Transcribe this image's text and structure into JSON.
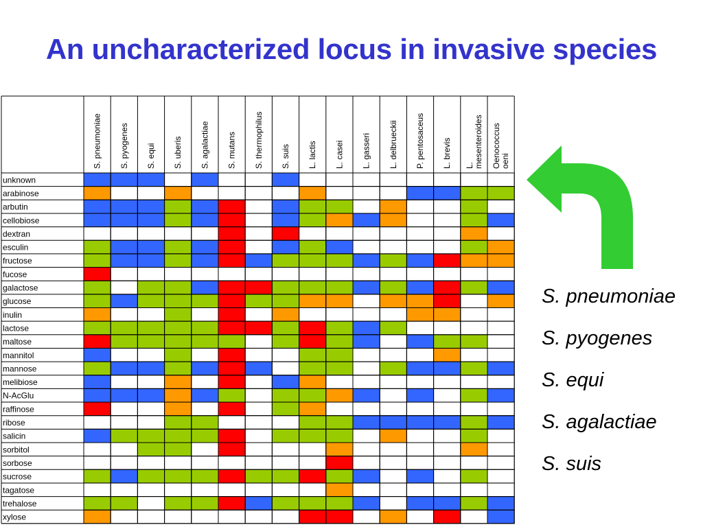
{
  "title": "An uncharacterized locus in invasive species",
  "columns": [
    "S. pneumoniae",
    "S. pyogenes",
    "S. equi",
    "S. uberis",
    "S. agalactiae",
    "S. mutans",
    "S. thermophilus",
    "S. suis",
    "L. lactis",
    "L. casei",
    "L. gasseri",
    "L. delbrueckii",
    "P. pentosaceus",
    "L. brevis",
    "L. mesenteroides",
    "Oenococcus oeni"
  ],
  "column_lines": [
    [
      "S. pneumoniae"
    ],
    [
      "S. pyogenes"
    ],
    [
      "S. equi"
    ],
    [
      "S. uberis"
    ],
    [
      "S. agalactiae"
    ],
    [
      "S. mutans"
    ],
    [
      "S. thermophilus"
    ],
    [
      "S. suis"
    ],
    [
      "L. lactis"
    ],
    [
      "L. casei"
    ],
    [
      "L. gasseri"
    ],
    [
      "L. delbrueckii"
    ],
    [
      "P. pentosaceus"
    ],
    [
      "L. brevis"
    ],
    [
      "L.",
      "mesenteroides"
    ],
    [
      "Oenococcus",
      "oeni"
    ]
  ],
  "legend_colors": {
    "B": "#3366ff",
    "G": "#99cc00",
    "R": "#ff0000",
    "O": "#ff9900",
    "W": "#ffffff"
  },
  "rows": [
    {
      "label": "unknown",
      "cells": "BBBWBWWBWWWWWWWW"
    },
    {
      "label": "arabinose",
      "cells": "OWWOWWWWOWWWBBGG"
    },
    {
      "label": "arbutin",
      "cells": "BBBGBRWBGGWOWWGW"
    },
    {
      "label": "cellobiose",
      "cells": "BBBGBRWBGOBOWWGB"
    },
    {
      "label": "dextran",
      "cells": "WWWWWRWRWWWWWWOW"
    },
    {
      "label": "esculin",
      "cells": "GBBGBRWBGBWWWWGO"
    },
    {
      "label": "fructose",
      "cells": "GBBGBRBGGGBGBROO"
    },
    {
      "label": "fucose",
      "cells": "RWWWWWWWWWWWWWWW"
    },
    {
      "label": "galactose",
      "cells": "GWGGBRRGGGBGBRGB"
    },
    {
      "label": "glucose",
      "cells": "GBGGGRGGOOWOORWO"
    },
    {
      "label": "inulin",
      "cells": "OWWGWRWOWWWWOOWW"
    },
    {
      "label": "lactose",
      "cells": "GGGGGRRGRGBGWWWW"
    },
    {
      "label": "maltose",
      "cells": "RGGGGGWGRGBWBGGW"
    },
    {
      "label": "mannitol",
      "cells": "BWWGWRWWGGWWWOWW"
    },
    {
      "label": "mannose",
      "cells": "GBBGBRBWGGWGBBGB"
    },
    {
      "label": "melibiose",
      "cells": "BWWOWRWBOWWWWWWW"
    },
    {
      "label": "N-AcGlu",
      "cells": "BBBOBGWGGOBWBWGB"
    },
    {
      "label": "raffinose",
      "cells": "RWWOWRWGOWWWWWWW"
    },
    {
      "label": "ribose",
      "cells": "WWWGGWWWGGBBBBGB"
    },
    {
      "label": "salicin",
      "cells": "BGGGGRWGGGWOWWGW"
    },
    {
      "label": "sorbitol",
      "cells": "WWGGWRWWWOWWWWOW"
    },
    {
      "label": "sorbose",
      "cells": "WWWWWWWWWRWWWWWW"
    },
    {
      "label": "sucrose",
      "cells": "GBGGGRGGRGBWBWGW"
    },
    {
      "label": "tagatose",
      "cells": "WWWWWWWWWOWWWWWW"
    },
    {
      "label": "trehalose",
      "cells": "GGWGGRBGGGBWBBGB"
    },
    {
      "label": "xylose",
      "cells": "OWWWWWWWRRWOWRWB"
    }
  ],
  "arrow_color": "#33cc33",
  "invasive_species": [
    "S. pneumoniae",
    "S. pyogenes",
    "S. equi",
    "S. agalactiae",
    "S. suis"
  ]
}
